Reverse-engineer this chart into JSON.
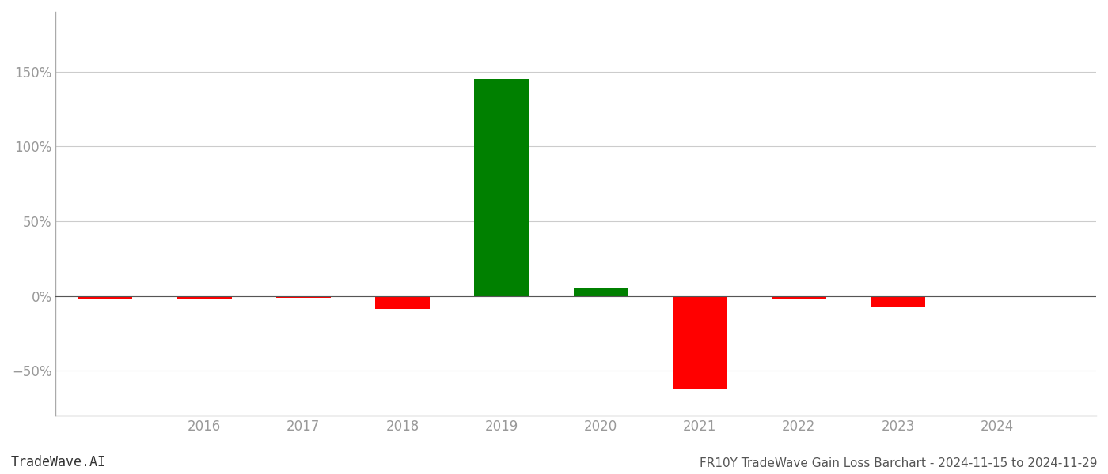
{
  "years": [
    2015,
    2016,
    2017,
    2018,
    2019,
    2020,
    2021,
    2022,
    2023,
    2024
  ],
  "values": [
    -1.5,
    -1.5,
    -1.0,
    -8.5,
    145.0,
    5.0,
    -62.0,
    -2.5,
    -7.0,
    -0.3
  ],
  "bar_colors": [
    "#ff0000",
    "#ff0000",
    "#ff0000",
    "#ff0000",
    "#008000",
    "#008000",
    "#ff0000",
    "#ff0000",
    "#ff0000",
    "#ff0000"
  ],
  "bar_width": 0.55,
  "xlim": [
    2014.5,
    2025.0
  ],
  "ylim": [
    -80,
    190
  ],
  "yticks": [
    -50,
    0,
    50,
    100,
    150
  ],
  "ytick_labels": [
    "−50%",
    "0%",
    "50%",
    "100%",
    "150%"
  ],
  "xtick_labels": [
    "2016",
    "2017",
    "2018",
    "2019",
    "2020",
    "2021",
    "2022",
    "2023",
    "2024"
  ],
  "xtick_positions": [
    2016,
    2017,
    2018,
    2019,
    2020,
    2021,
    2022,
    2023,
    2024
  ],
  "grid_color": "#cccccc",
  "spine_color": "#aaaaaa",
  "bg_color": "#ffffff",
  "zero_line_color": "#555555",
  "title": "FR10Y TradeWave Gain Loss Barchart - 2024-11-15 to 2024-11-29",
  "watermark": "TradeWave.AI",
  "title_fontsize": 11,
  "tick_fontsize": 12,
  "watermark_fontsize": 12,
  "tick_color": "#999999"
}
